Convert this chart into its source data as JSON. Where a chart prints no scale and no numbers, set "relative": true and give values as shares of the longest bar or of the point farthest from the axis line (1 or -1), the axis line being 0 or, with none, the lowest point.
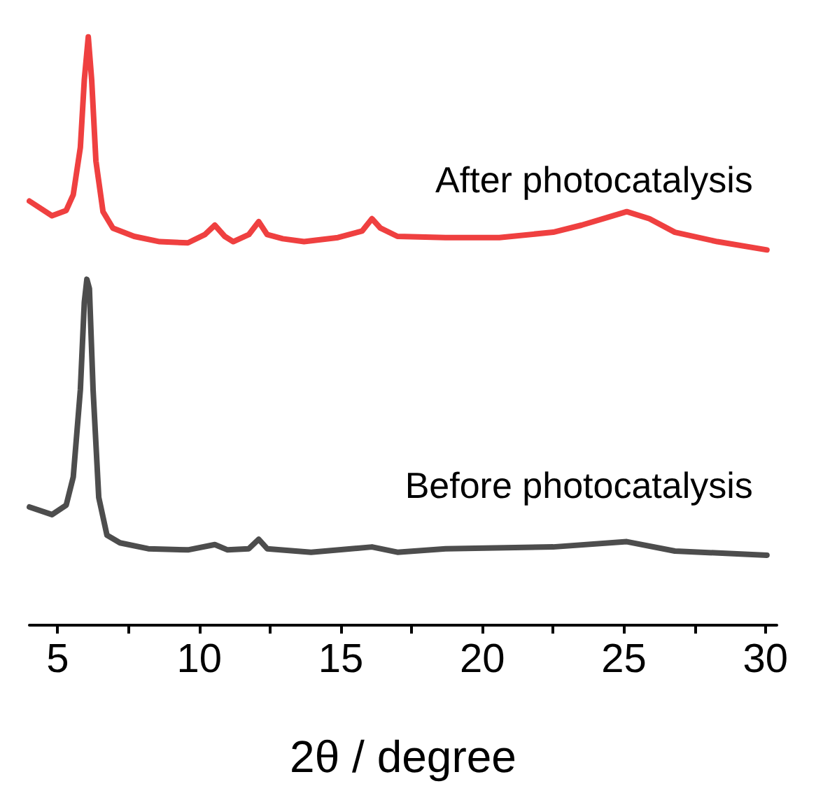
{
  "chart_data": {
    "type": "line",
    "relative": true,
    "xlabel": "2θ / degree",
    "xlim": [
      4,
      30.4
    ],
    "xticks": [
      5,
      {
        "value": 7.5,
        "label": null
      },
      10,
      {
        "value": 12.5,
        "label": null
      },
      15,
      {
        "value": 17.5,
        "label": null
      },
      20,
      {
        "value": 22.5,
        "label": null
      },
      25,
      {
        "value": 27.5,
        "label": null
      },
      30
    ],
    "tick_labels": "x",
    "series": [
      {
        "name": "After photocatalysis",
        "color": "#ef4040",
        "x": [
          4.0,
          4.8,
          5.3,
          5.55,
          5.8,
          5.94,
          6.08,
          6.2,
          6.35,
          6.6,
          6.95,
          7.7,
          8.6,
          9.6,
          10.2,
          10.55,
          10.9,
          11.2,
          11.75,
          12.1,
          12.4,
          12.95,
          13.7,
          14.9,
          15.75,
          16.1,
          16.4,
          17.0,
          18.7,
          20.6,
          22.5,
          23.5,
          24.4,
          25.1,
          25.9,
          26.8,
          28.3,
          30.05
        ],
        "values": [
          0.721,
          0.696,
          0.705,
          0.732,
          0.812,
          0.927,
          1.0,
          0.927,
          0.789,
          0.703,
          0.675,
          0.661,
          0.652,
          0.65,
          0.664,
          0.68,
          0.661,
          0.652,
          0.664,
          0.686,
          0.664,
          0.657,
          0.652,
          0.659,
          0.67,
          0.691,
          0.675,
          0.661,
          0.659,
          0.659,
          0.668,
          0.68,
          0.693,
          0.703,
          0.691,
          0.668,
          0.652,
          0.638
        ]
      },
      {
        "name": "Before photocatalysis",
        "color": "#4d4d4d",
        "x": [
          4.0,
          4.8,
          5.3,
          5.55,
          5.8,
          5.94,
          6.03,
          6.12,
          6.25,
          6.45,
          6.74,
          7.2,
          8.2,
          9.6,
          10.55,
          11.0,
          11.75,
          12.1,
          12.4,
          13.95,
          16.1,
          17.0,
          18.7,
          22.5,
          25.1,
          26.8,
          30.05
        ],
        "values": [
          0.201,
          0.188,
          0.204,
          0.252,
          0.4,
          0.549,
          0.588,
          0.572,
          0.4,
          0.217,
          0.153,
          0.14,
          0.13,
          0.128,
          0.137,
          0.128,
          0.13,
          0.146,
          0.13,
          0.124,
          0.133,
          0.124,
          0.13,
          0.133,
          0.142,
          0.126,
          0.119
        ]
      }
    ]
  }
}
